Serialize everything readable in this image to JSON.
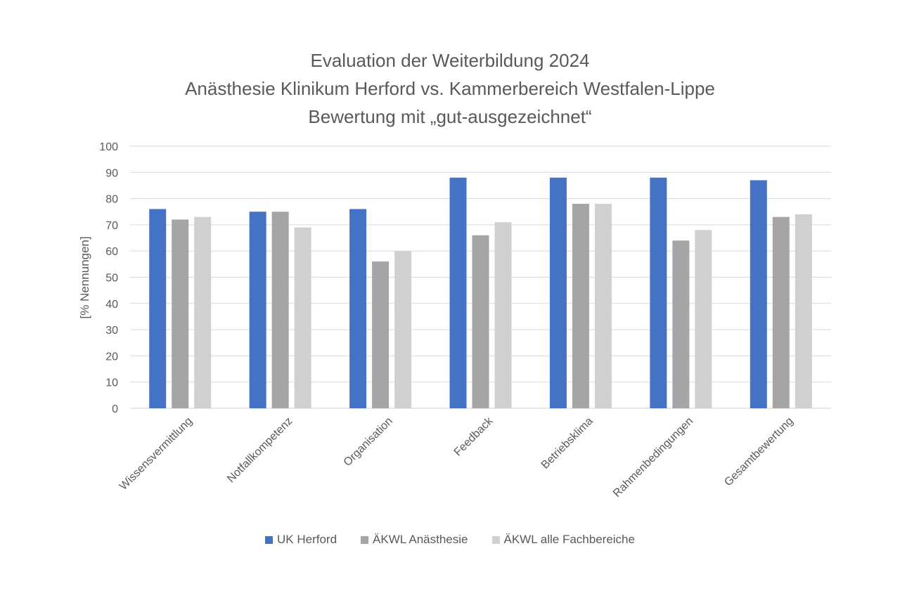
{
  "chart_data": {
    "type": "bar",
    "title": "Evaluation der Weiterbildung 2024",
    "subtitle_lines": [
      "Anästhesie Klinikum Herford vs. Kammerbereich Westfalen-Lippe",
      "Bewertung mit „gut-ausgezeichnet“"
    ],
    "xlabel": "",
    "ylabel": "[% Nennungen]",
    "ylim": [
      0,
      100
    ],
    "yticks": [
      0,
      10,
      20,
      30,
      40,
      50,
      60,
      70,
      80,
      90,
      100
    ],
    "grid": true,
    "legend_position": "bottom",
    "categories": [
      "Wissensvermittlung",
      "Notfallkompetenz",
      "Organisation",
      "Feedback",
      "Betriebsklima",
      "Rahmenbedingungen",
      "Gesamtbewertung"
    ],
    "series": [
      {
        "name": "UK Herford",
        "color": "#4472C4",
        "values": [
          76,
          75,
          76,
          88,
          88,
          88,
          87
        ]
      },
      {
        "name": "ÄKWL Anästhesie",
        "color": "#A5A5A5",
        "values": [
          72,
          75,
          56,
          66,
          78,
          64,
          73
        ]
      },
      {
        "name": "ÄKWL alle Fachbereiche",
        "color": "#D0D0D0",
        "values": [
          73,
          69,
          60,
          71,
          78,
          68,
          74
        ]
      }
    ]
  }
}
